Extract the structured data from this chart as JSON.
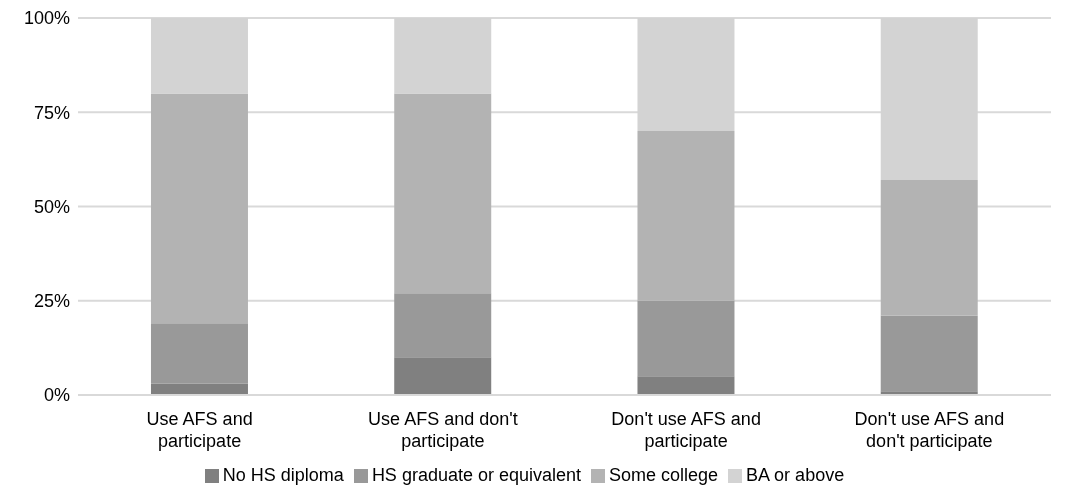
{
  "chart_data": {
    "type": "bar",
    "stacked": true,
    "categories": [
      "Use AFS and participate",
      "Use AFS and don't participate",
      "Don't use AFS and participate",
      "Don't use AFS and don't participate"
    ],
    "series": [
      {
        "name": "No HS diploma",
        "color": "#808080",
        "values": [
          3,
          10,
          5,
          1
        ]
      },
      {
        "name": "HS graduate or equivalent",
        "color": "#999999",
        "values": [
          16,
          17,
          20,
          20
        ]
      },
      {
        "name": "Some college",
        "color": "#b3b3b3",
        "values": [
          61,
          53,
          45,
          36
        ]
      },
      {
        "name": "BA or above",
        "color": "#d3d3d3",
        "values": [
          20,
          20,
          30,
          43
        ]
      }
    ],
    "ylim": [
      0,
      100
    ],
    "yticks": [
      {
        "value": 0,
        "label": "0%"
      },
      {
        "value": 25,
        "label": "25%"
      },
      {
        "value": 50,
        "label": "50%"
      },
      {
        "value": 75,
        "label": "75%"
      },
      {
        "value": 100,
        "label": "100%"
      }
    ],
    "grid": "y",
    "legend": "bottom"
  }
}
